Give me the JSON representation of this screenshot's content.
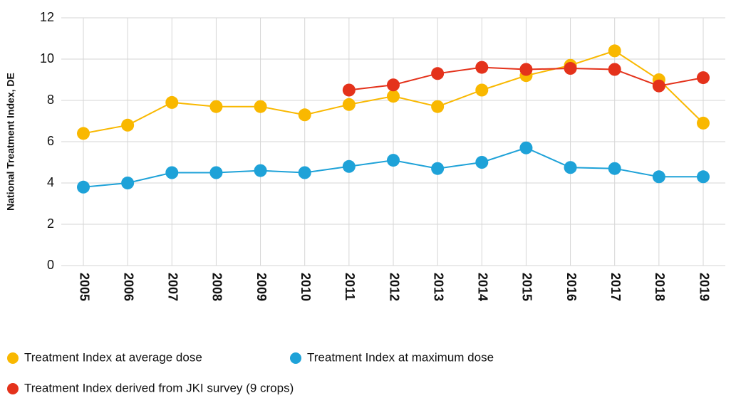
{
  "chart_data": {
    "type": "line",
    "y_label": "National Treatment Index, DE",
    "categories": [
      "2005",
      "2006",
      "2007",
      "2008",
      "2009",
      "2010",
      "2011",
      "2012",
      "2013",
      "2014",
      "2015",
      "2016",
      "2017",
      "2018",
      "2019"
    ],
    "series": [
      {
        "name": "Treatment Index at average dose",
        "color": "#f9b800",
        "values": [
          6.4,
          6.8,
          7.9,
          7.7,
          7.7,
          7.3,
          7.8,
          8.2,
          7.7,
          8.5,
          9.2,
          9.7,
          10.4,
          9.0,
          6.9
        ]
      },
      {
        "name": "Treatment Index at maximum dose",
        "color": "#1ea2d8",
        "values": [
          3.8,
          4.0,
          4.5,
          4.5,
          4.6,
          4.5,
          4.8,
          5.1,
          4.7,
          5.0,
          5.7,
          4.75,
          4.7,
          4.3,
          4.3
        ]
      },
      {
        "name": "Treatment Index derived from JKI survey (9 crops)",
        "color": "#e4321b",
        "values": [
          null,
          null,
          null,
          null,
          null,
          null,
          8.5,
          8.75,
          9.3,
          9.6,
          9.5,
          9.55,
          9.5,
          8.7,
          9.1
        ]
      }
    ],
    "ylim": [
      0,
      12
    ],
    "yticks": [
      0,
      2,
      4,
      6,
      8,
      10,
      12
    ],
    "grid": true
  }
}
